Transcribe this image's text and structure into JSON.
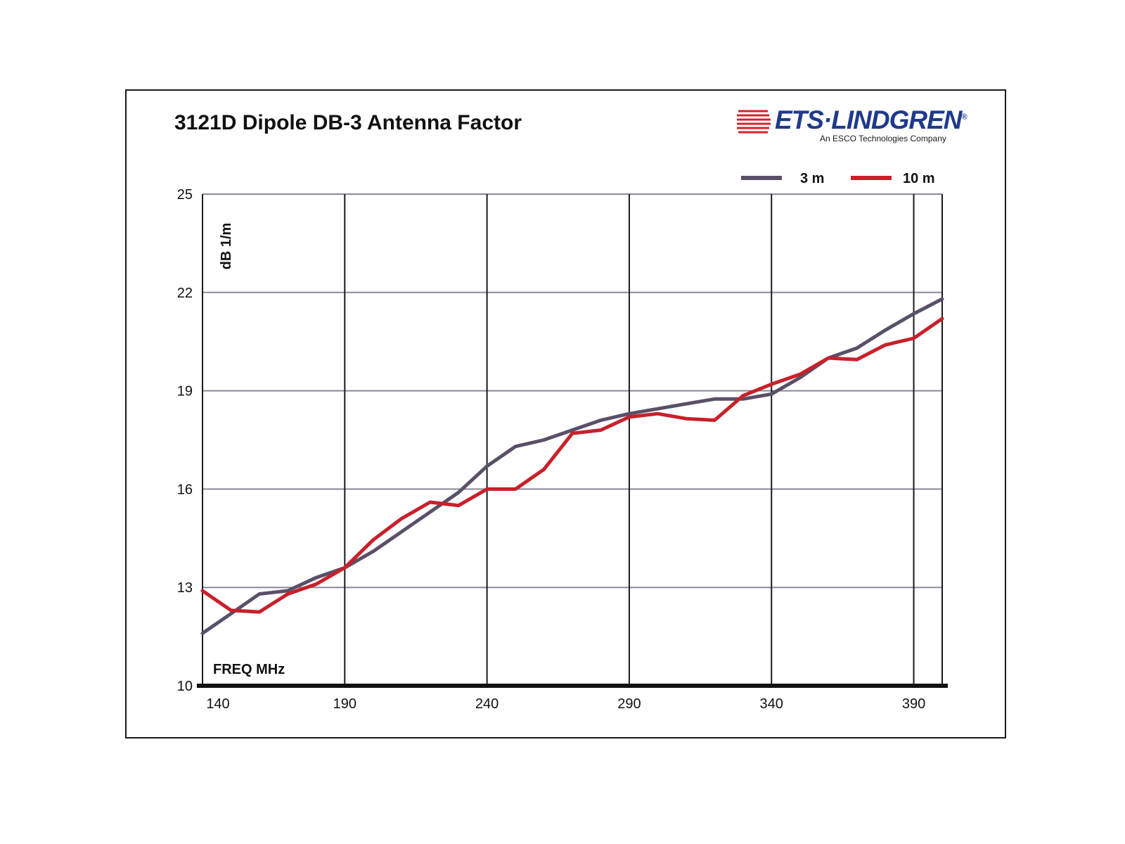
{
  "brand": {
    "name": "ETS·LINDGREN",
    "registered": "®",
    "tagline": "An ESCO Technologies Company",
    "mark_color": "#d8232a",
    "name_color": "#1f3a8a"
  },
  "chart_data": {
    "type": "line",
    "title": "3121D Dipole DB-3 Antenna Factor",
    "xlabel": "FREQ  MHz",
    "ylabel": "dB 1/m",
    "xlim": [
      140,
      400
    ],
    "ylim": [
      10,
      25
    ],
    "xticks": [
      140,
      190,
      240,
      290,
      340,
      390
    ],
    "yticks": [
      10,
      13,
      16,
      19,
      22,
      25
    ],
    "xgrid": [
      190,
      240,
      290,
      340,
      390,
      400
    ],
    "ygrid": [
      13,
      16,
      19,
      22,
      25
    ],
    "grid": true,
    "legend_position": "top-right",
    "series": [
      {
        "name": "3 m",
        "color": "#5b4f68",
        "x": [
          140,
          150,
          160,
          170,
          180,
          190,
          200,
          210,
          220,
          230,
          240,
          250,
          260,
          270,
          280,
          290,
          300,
          310,
          320,
          330,
          340,
          350,
          360,
          370,
          380,
          390,
          400
        ],
        "y": [
          11.6,
          12.2,
          12.8,
          12.9,
          13.3,
          13.6,
          14.1,
          14.7,
          15.3,
          15.9,
          16.7,
          17.3,
          17.5,
          17.8,
          18.1,
          18.3,
          18.45,
          18.6,
          18.75,
          18.75,
          18.9,
          19.4,
          20.0,
          20.3,
          20.85,
          21.35,
          21.8
        ]
      },
      {
        "name": "10 m",
        "color": "#c8202a",
        "x": [
          140,
          150,
          160,
          170,
          180,
          190,
          200,
          210,
          220,
          230,
          240,
          250,
          260,
          270,
          280,
          290,
          300,
          310,
          320,
          330,
          340,
          350,
          360,
          370,
          380,
          390,
          400
        ],
        "y": [
          12.9,
          12.3,
          12.25,
          12.8,
          13.1,
          13.6,
          14.45,
          15.1,
          15.6,
          15.5,
          16.0,
          16.0,
          16.6,
          17.7,
          17.8,
          18.2,
          18.3,
          18.15,
          18.1,
          18.85,
          19.2,
          19.5,
          20.0,
          19.95,
          20.4,
          20.6,
          21.2
        ]
      }
    ]
  }
}
